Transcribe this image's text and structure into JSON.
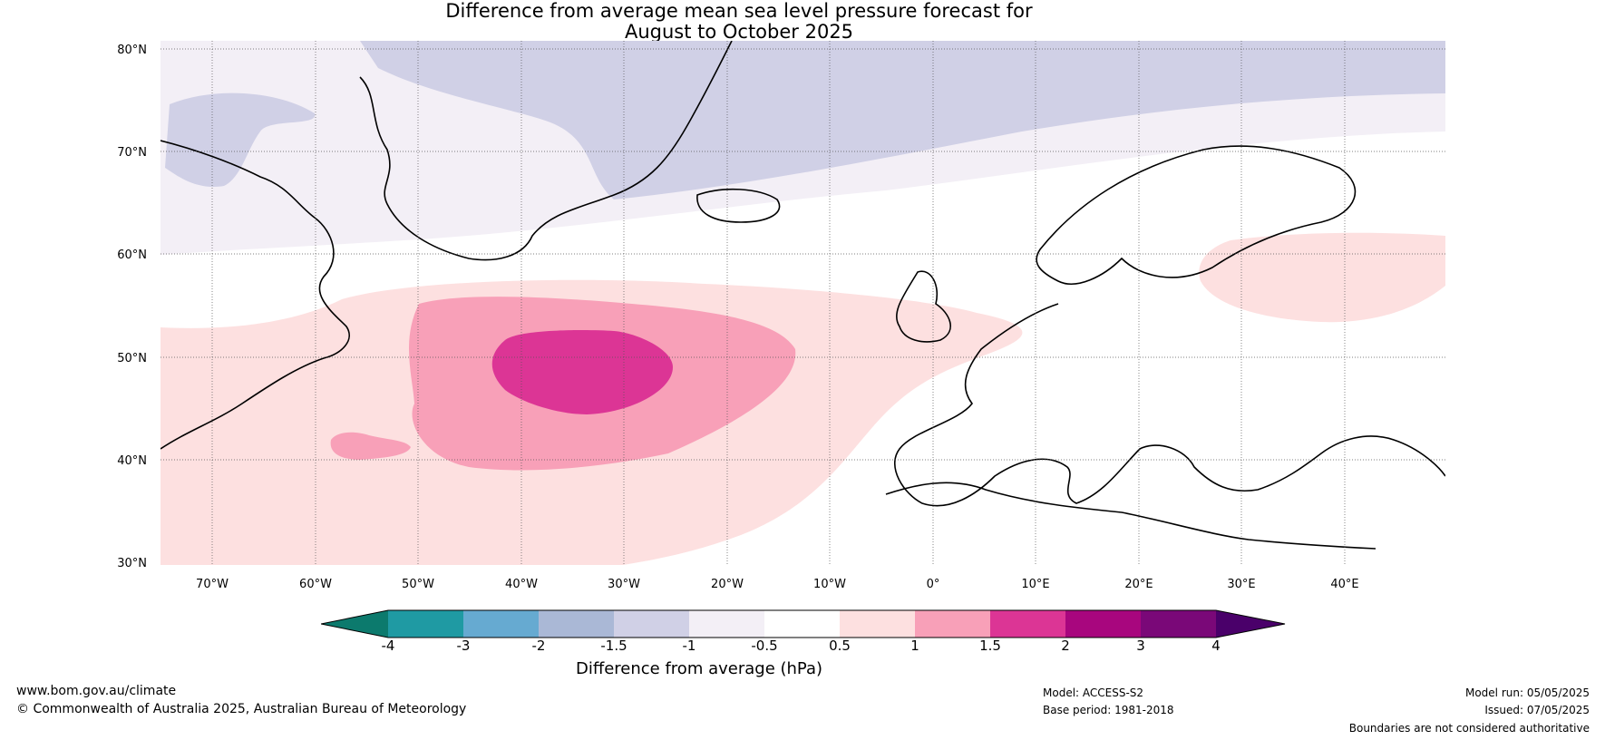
{
  "title": {
    "line1": "Difference from average mean sea level pressure forecast for",
    "line2": "August to October 2025"
  },
  "axes": {
    "lat_labels": [
      "80°N",
      "70°N",
      "60°N",
      "50°N",
      "40°N",
      "30°N"
    ],
    "lon_labels": [
      "70°W",
      "60°W",
      "50°W",
      "40°W",
      "30°W",
      "20°W",
      "10°W",
      "0°",
      "10°E",
      "20°E",
      "30°E",
      "40°E"
    ]
  },
  "map_data": {
    "extent": {
      "lon": [
        -75,
        50
      ],
      "lat": [
        30,
        81
      ]
    },
    "gridlines": true,
    "features": [
      {
        "name": "strong-positive-anomaly-core",
        "value_range": "1.5 to 2",
        "center_lon": -35,
        "center_lat": 48.5,
        "color": "#dc3595"
      },
      {
        "name": "moderate-positive-anomaly",
        "value_range": "1 to 1.5",
        "center_lon": -34,
        "center_lat": 47,
        "color": "#f8a0b8"
      },
      {
        "name": "weak-positive-anomaly-atlantic",
        "value_range": "0.5 to 1",
        "center_lon": -40,
        "center_lat": 44,
        "color": "#fde0e0"
      },
      {
        "name": "weak-positive-anomaly-russia",
        "value_range": "0.5 to 1",
        "center_lon": 40,
        "center_lat": 58,
        "color": "#fde0e0"
      },
      {
        "name": "arctic-negative-anomaly",
        "value_range": "-1.5 to -1",
        "center_lon": -10,
        "center_lat": 77,
        "color": "#d0d0e6"
      },
      {
        "name": "subarctic-negative-anomaly",
        "value_range": "-1 to -0.5",
        "center_lon": -20,
        "center_lat": 68,
        "color": "#f3eff6"
      }
    ]
  },
  "colorbar": {
    "ticks": [
      "-4",
      "-3",
      "-2",
      "-1.5",
      "-1",
      "-0.5",
      "0.5",
      "1",
      "1.5",
      "2",
      "3",
      "4"
    ],
    "colors": [
      "#0c7a6d",
      "#1f9aa3",
      "#66aad1",
      "#aab8d6",
      "#d0d0e6",
      "#f3eff6",
      "#ffffff",
      "#fde0e0",
      "#f8a0b8",
      "#dc3595",
      "#a8067e",
      "#7a0878",
      "#4a006a"
    ],
    "label": "Difference from average (hPa)"
  },
  "footer": {
    "website": "www.bom.gov.au/climate",
    "copyright": "© Commonwealth of Australia 2025, Australian Bureau of Meteorology",
    "model": "Model: ACCESS-S2",
    "base_period": "Base period: 1981-2018",
    "model_run": "Model run: 05/05/2025",
    "issued": "Issued: 07/05/2025",
    "disclaimer": "Boundaries are not considered authoritative"
  }
}
